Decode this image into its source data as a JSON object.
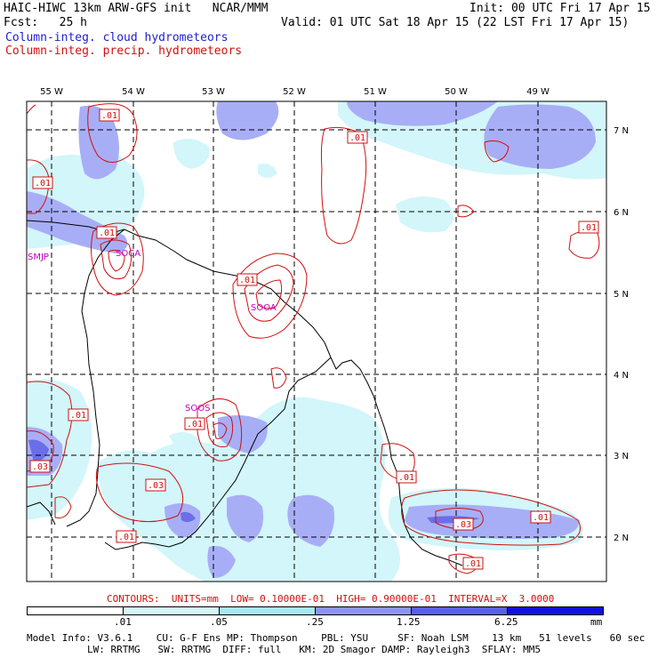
{
  "header": {
    "title_left": "HAIC-HIWC 13km ARW-GFS init   NCAR/MMM",
    "init": "Init: 00 UTC Fri 17 Apr 15",
    "fcst_label": "Fcst:   25 h",
    "valid": "Valid: 01 UTC Sat 18 Apr 15 (22 LST Fri 17 Apr 15)",
    "field1": "Column-integ. cloud hydrometeors",
    "field2": "Column-integ. precip. hydrometeors"
  },
  "map": {
    "lon_labels": [
      "55 W",
      "54 W",
      "53 W",
      "52 W",
      "51 W",
      "50 W",
      "49 W"
    ],
    "lat_labels": [
      "7 N",
      "6 N",
      "5 N",
      "4 N",
      "3 N",
      "2 N"
    ],
    "stations": [
      "SMJP",
      "SOCA",
      "SOOA",
      "SOOS"
    ],
    "contour_labels": [
      ".01",
      ".01",
      ".01",
      ".01",
      ".01",
      ".01",
      ".01",
      ".01",
      ".01",
      ".01",
      ".03",
      ".03",
      ".01",
      ".01",
      ".03",
      ".01",
      ".01"
    ],
    "colors": {
      "cloud_light": "#d2f6fa",
      "cloud_mid": "#a8aef6",
      "cloud_dark": "#6a6ee8",
      "precip": "#d01010",
      "station": "#c000c0"
    }
  },
  "contour_info": "CONTOURS:  UNITS=mm  LOW= 0.10000E-01  HIGH= 0.90000E-01  INTERVAL=X  3.0000",
  "colorbar": {
    "labels": [
      ".01",
      ".05",
      ".25",
      "1.25",
      "6.25"
    ],
    "unit": "mm",
    "colors": [
      "#ffffff",
      "#d2f6fa",
      "#a8e8f4",
      "#8c94ee",
      "#5a60e6",
      "#1010e0"
    ]
  },
  "footer": {
    "line1": "Model Info: V3.6.1    CU: G-F Ens MP: Thompson    PBL: YSU     SF: Noah LSM    13 km   51 levels   60 sec",
    "line2": "LW: RRTMG   SW: RRTMG  DIFF: full   KM: 2D Smagor DAMP: Rayleigh3  SFLAY: MM5"
  }
}
